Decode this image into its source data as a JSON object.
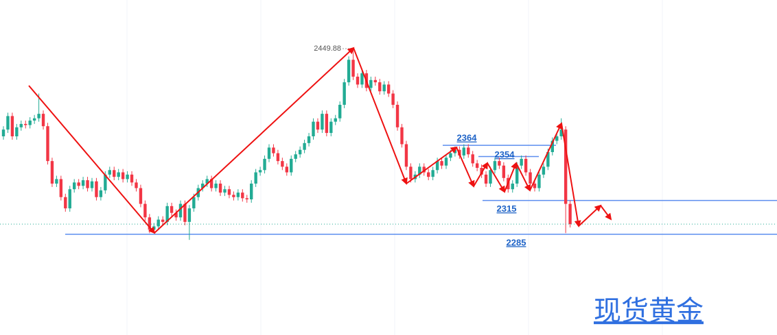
{
  "chart_data": {
    "type": "candlestick",
    "title": "现货黄金",
    "up_color": "#22ab94",
    "down_color": "#f23645",
    "level_color": "#5b8def",
    "ylim": [
      2195.5,
      2493.1
    ],
    "levels": [
      2364,
      2354,
      2315,
      2285
    ],
    "last_price_line": true,
    "open": [
      2372,
      2378,
      2390,
      2372,
      2380,
      2383,
      2382,
      2386,
      2388,
      2392,
      2381,
      2350,
      2330,
      2334,
      2318,
      2308,
      2325,
      2331,
      2328,
      2333,
      2326,
      2332,
      2318,
      2324,
      2338,
      2342,
      2336,
      2340,
      2334,
      2338,
      2331,
      2326,
      2312,
      2300,
      2289,
      2292,
      2298,
      2296,
      2310,
      2304,
      2300,
      2312,
      2296,
      2308,
      2318,
      2326,
      2330,
      2334,
      2326,
      2330,
      2322,
      2325,
      2320,
      2318,
      2322,
      2317,
      2316,
      2330,
      2340,
      2342,
      2352,
      2362,
      2357,
      2350,
      2345,
      2340,
      2352,
      2356,
      2360,
      2366,
      2372,
      2385,
      2378,
      2392,
      2375,
      2385,
      2388,
      2400,
      2420,
      2440,
      2425,
      2418,
      2428,
      2415,
      2422,
      2420,
      2412,
      2418,
      2410,
      2400,
      2380,
      2365,
      2345,
      2334,
      2338,
      2345,
      2340,
      2336,
      2342,
      2350,
      2346,
      2353,
      2357,
      2360,
      2355,
      2362,
      2356,
      2348,
      2344,
      2338,
      2330,
      2342,
      2350,
      2346,
      2335,
      2325,
      2330,
      2346,
      2352,
      2340,
      2330,
      2326,
      2338,
      2345,
      2358,
      2368,
      2372,
      2378,
      2312
    ],
    "high": [
      2381,
      2393,
      2393,
      2383,
      2386,
      2386,
      2389,
      2391,
      2410,
      2395,
      2384,
      2353,
      2337,
      2337,
      2321,
      2328,
      2334,
      2334,
      2336,
      2336,
      2335,
      2335,
      2327,
      2341,
      2345,
      2345,
      2343,
      2343,
      2341,
      2341,
      2334,
      2329,
      2315,
      2303,
      2295,
      2301,
      2301,
      2313,
      2313,
      2307,
      2315,
      2315,
      2311,
      2321,
      2329,
      2333,
      2337,
      2337,
      2333,
      2333,
      2328,
      2328,
      2323,
      2325,
      2325,
      2320,
      2333,
      2343,
      2345,
      2355,
      2365,
      2365,
      2360,
      2353,
      2348,
      2355,
      2359,
      2363,
      2369,
      2375,
      2388,
      2388,
      2395,
      2395,
      2388,
      2391,
      2403,
      2423,
      2443,
      2449.88,
      2428,
      2431,
      2431,
      2425,
      2425,
      2423,
      2421,
      2421,
      2413,
      2403,
      2383,
      2368,
      2348,
      2341,
      2348,
      2348,
      2343,
      2345,
      2353,
      2353,
      2356,
      2360,
      2363,
      2363,
      2365,
      2365,
      2359,
      2351,
      2347,
      2341,
      2345,
      2353,
      2353,
      2349,
      2338,
      2333,
      2349,
      2355,
      2355,
      2343,
      2333,
      2341,
      2348,
      2361,
      2371,
      2375,
      2388,
      2381,
      2315
    ],
    "low": [
      2369,
      2375,
      2369,
      2369,
      2377,
      2379,
      2379,
      2383,
      2385,
      2378,
      2347,
      2327,
      2327,
      2315,
      2305,
      2305,
      2322,
      2325,
      2325,
      2323,
      2323,
      2315,
      2315,
      2321,
      2335,
      2333,
      2333,
      2331,
      2331,
      2328,
      2323,
      2309,
      2297,
      2286,
      2286,
      2289,
      2293,
      2293,
      2301,
      2297,
      2297,
      2293,
      2280,
      2305,
      2315,
      2323,
      2327,
      2323,
      2323,
      2319,
      2319,
      2317,
      2315,
      2315,
      2314,
      2313,
      2313,
      2327,
      2337,
      2339,
      2349,
      2354,
      2347,
      2342,
      2337,
      2337,
      2349,
      2353,
      2357,
      2363,
      2369,
      2375,
      2375,
      2372,
      2372,
      2382,
      2385,
      2397,
      2417,
      2422,
      2415,
      2415,
      2412,
      2412,
      2417,
      2409,
      2409,
      2407,
      2397,
      2377,
      2362,
      2342,
      2331,
      2331,
      2335,
      2337,
      2333,
      2333,
      2339,
      2343,
      2343,
      2350,
      2354,
      2352,
      2352,
      2353,
      2345,
      2341,
      2335,
      2327,
      2327,
      2339,
      2343,
      2332,
      2322,
      2322,
      2327,
      2343,
      2337,
      2327,
      2323,
      2323,
      2335,
      2342,
      2355,
      2365,
      2369,
      2286,
      2291
    ],
    "close": [
      2378,
      2390,
      2372,
      2380,
      2383,
      2382,
      2386,
      2388,
      2392,
      2381,
      2350,
      2330,
      2334,
      2318,
      2308,
      2325,
      2331,
      2328,
      2333,
      2326,
      2332,
      2318,
      2324,
      2338,
      2342,
      2336,
      2340,
      2334,
      2338,
      2331,
      2326,
      2312,
      2300,
      2289,
      2292,
      2298,
      2296,
      2310,
      2304,
      2300,
      2312,
      2296,
      2308,
      2318,
      2326,
      2330,
      2334,
      2326,
      2330,
      2322,
      2325,
      2320,
      2318,
      2322,
      2317,
      2316,
      2330,
      2340,
      2342,
      2352,
      2362,
      2357,
      2350,
      2345,
      2340,
      2352,
      2356,
      2360,
      2366,
      2372,
      2385,
      2378,
      2392,
      2375,
      2385,
      2388,
      2400,
      2420,
      2440,
      2425,
      2418,
      2428,
      2415,
      2422,
      2420,
      2412,
      2418,
      2410,
      2400,
      2380,
      2365,
      2345,
      2334,
      2338,
      2345,
      2340,
      2336,
      2342,
      2350,
      2346,
      2353,
      2357,
      2360,
      2355,
      2362,
      2356,
      2348,
      2344,
      2338,
      2330,
      2342,
      2350,
      2346,
      2335,
      2325,
      2330,
      2346,
      2352,
      2340,
      2330,
      2326,
      2338,
      2345,
      2358,
      2368,
      2372,
      2378,
      2312,
      2294
    ]
  }
}
